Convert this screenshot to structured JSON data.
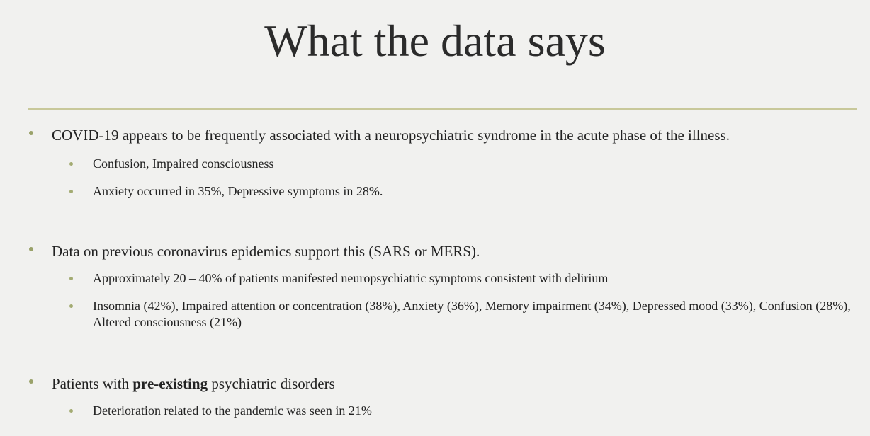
{
  "slide": {
    "title": "What the data says",
    "bullets": [
      {
        "text": "COVID-19 appears to be frequently associated with a neuropsychiatric syndrome in the acute phase of the illness.",
        "subs": [
          "Confusion, Impaired consciousness",
          "Anxiety occurred in 35%, Depressive symptoms in 28%."
        ]
      },
      {
        "text": "Data on previous coronavirus epidemics support this (SARS or MERS).",
        "subs": [
          "Approximately 20 – 40% of patients manifested neuropsychiatric symptoms consistent with delirium",
          "Insomnia (42%), Impaired attention or concentration (38%), Anxiety (36%), Memory impairment (34%), Depressed mood (33%), Confusion (28%), Altered consciousness (21%)"
        ]
      },
      {
        "text_before": "Patients with ",
        "text_bold": "pre-existing",
        "text_after": " psychiatric disorders",
        "subs": [
          "Deterioration related to the pandemic was seen in 21%"
        ]
      }
    ]
  }
}
